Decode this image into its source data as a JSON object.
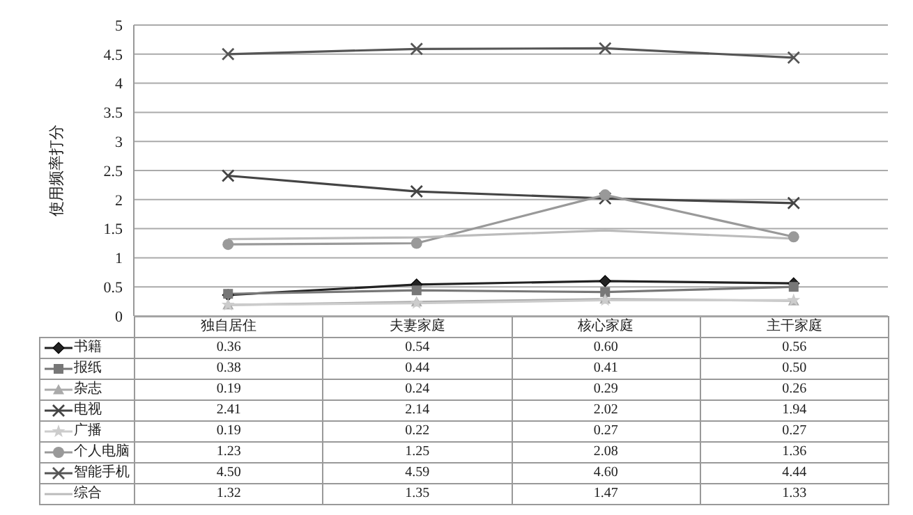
{
  "chart_data": {
    "type": "line",
    "ylabel": "使用频率打分",
    "categories": [
      "独自居住",
      "夫妻家庭",
      "核心家庭",
      "主干家庭"
    ],
    "ylim": [
      0,
      5
    ],
    "yticks": [
      0,
      0.5,
      1,
      1.5,
      2,
      2.5,
      3,
      3.5,
      4,
      4.5,
      5
    ],
    "grid": "y",
    "legend": "bottom",
    "series": [
      {
        "name": "书籍",
        "color": "#222222",
        "marker": "diamond",
        "values": [
          0.36,
          0.54,
          0.6,
          0.56
        ],
        "value_labels": [
          "0.36",
          "0.54",
          "0.60",
          "0.56"
        ]
      },
      {
        "name": "报纸",
        "color": "#777777",
        "marker": "square",
        "values": [
          0.38,
          0.44,
          0.41,
          0.5
        ],
        "value_labels": [
          "0.38",
          "0.44",
          "0.41",
          "0.50"
        ]
      },
      {
        "name": "杂志",
        "color": "#aaaaaa",
        "marker": "triangle",
        "values": [
          0.19,
          0.24,
          0.29,
          0.26
        ],
        "value_labels": [
          "0.19",
          "0.24",
          "0.29",
          "0.26"
        ]
      },
      {
        "name": "电视",
        "color": "#444444",
        "marker": "cross",
        "values": [
          2.41,
          2.14,
          2.02,
          1.94
        ],
        "value_labels": [
          "2.41",
          "2.14",
          "2.02",
          "1.94"
        ]
      },
      {
        "name": "广播",
        "color": "#cccccc",
        "marker": "star",
        "values": [
          0.19,
          0.22,
          0.27,
          0.27
        ],
        "value_labels": [
          "0.19",
          "0.22",
          "0.27",
          "0.27"
        ]
      },
      {
        "name": "个人电脑",
        "color": "#999999",
        "marker": "circle",
        "values": [
          1.23,
          1.25,
          2.08,
          1.36
        ],
        "value_labels": [
          "1.23",
          "1.25",
          "2.08",
          "1.36"
        ]
      },
      {
        "name": "智能手机",
        "color": "#555555",
        "marker": "cross",
        "values": [
          4.5,
          4.59,
          4.6,
          4.44
        ],
        "value_labels": [
          "4.50",
          "4.59",
          "4.60",
          "4.44"
        ]
      },
      {
        "name": "综合",
        "color": "#bbbbbb",
        "marker": "none",
        "values": [
          1.32,
          1.35,
          1.47,
          1.33
        ],
        "value_labels": [
          "1.32",
          "1.35",
          "1.47",
          "1.33"
        ]
      }
    ]
  }
}
